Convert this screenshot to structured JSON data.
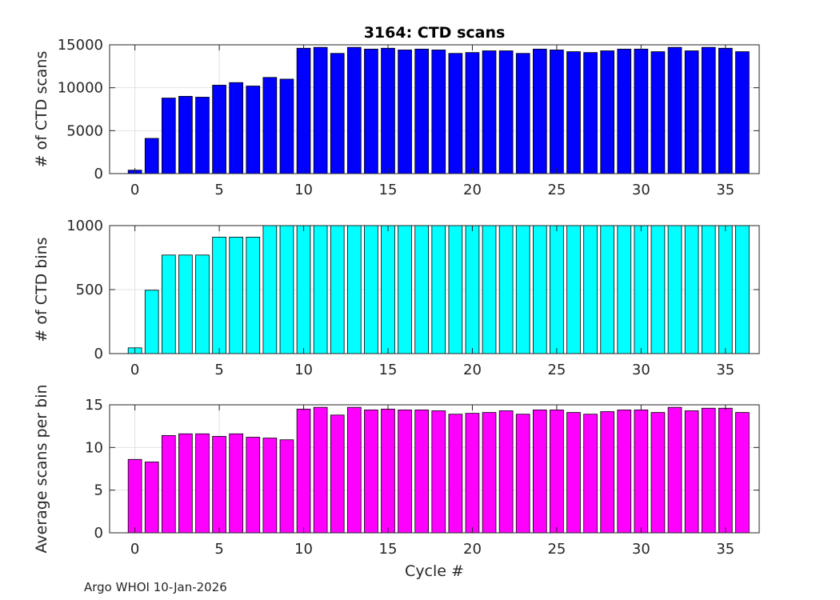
{
  "chart_data": [
    {
      "type": "bar",
      "title": "3164: CTD scans",
      "xlabel": "",
      "ylabel": "# of CTD scans",
      "bar_color": "#0000ff",
      "x": [
        0,
        1,
        2,
        3,
        4,
        5,
        6,
        7,
        8,
        9,
        10,
        11,
        12,
        13,
        14,
        15,
        16,
        17,
        18,
        19,
        20,
        21,
        22,
        23,
        24,
        25,
        26,
        27,
        28,
        29,
        30,
        31,
        32,
        33,
        34,
        35,
        36
      ],
      "values": [
        400,
        4100,
        8800,
        9000,
        8900,
        10300,
        10600,
        10200,
        11200,
        11000,
        14600,
        14700,
        14000,
        14700,
        14500,
        14600,
        14400,
        14500,
        14400,
        14000,
        14100,
        14300,
        14300,
        14000,
        14500,
        14400,
        14200,
        14100,
        14300,
        14500,
        14500,
        14200,
        14700,
        14300,
        14700,
        14600,
        14200
      ],
      "xlim": [
        -1.5,
        37
      ],
      "ylim": [
        0,
        15000
      ],
      "xticks": [
        0,
        5,
        10,
        15,
        20,
        25,
        30,
        35
      ],
      "yticks": [
        0,
        5000,
        10000,
        15000
      ],
      "grid": true
    },
    {
      "type": "bar",
      "title": "",
      "xlabel": "",
      "ylabel": "# of CTD bins",
      "bar_color": "#00ffff",
      "x": [
        0,
        1,
        2,
        3,
        4,
        5,
        6,
        7,
        8,
        9,
        10,
        11,
        12,
        13,
        14,
        15,
        16,
        17,
        18,
        19,
        20,
        21,
        22,
        23,
        24,
        25,
        26,
        27,
        28,
        29,
        30,
        31,
        32,
        33,
        34,
        35,
        36
      ],
      "values": [
        45,
        495,
        770,
        770,
        770,
        910,
        910,
        910,
        1000,
        1000,
        1000,
        1000,
        1000,
        1000,
        1000,
        1000,
        1000,
        1000,
        1000,
        1000,
        1000,
        1000,
        1000,
        1000,
        1000,
        1000,
        1000,
        1000,
        1000,
        1000,
        1000,
        1000,
        1000,
        1000,
        1000,
        1000,
        1000
      ],
      "xlim": [
        -1.5,
        37
      ],
      "ylim": [
        0,
        1000
      ],
      "xticks": [
        0,
        5,
        10,
        15,
        20,
        25,
        30,
        35
      ],
      "yticks": [
        0,
        500,
        1000
      ],
      "grid": true
    },
    {
      "type": "bar",
      "title": "",
      "xlabel": "Cycle #",
      "ylabel": "Average scans per bin",
      "bar_color": "#ff00ff",
      "x": [
        0,
        1,
        2,
        3,
        4,
        5,
        6,
        7,
        8,
        9,
        10,
        11,
        12,
        13,
        14,
        15,
        16,
        17,
        18,
        19,
        20,
        21,
        22,
        23,
        24,
        25,
        26,
        27,
        28,
        29,
        30,
        31,
        32,
        33,
        34,
        35,
        36
      ],
      "values": [
        8.6,
        8.3,
        11.4,
        11.6,
        11.6,
        11.3,
        11.6,
        11.2,
        11.1,
        10.9,
        14.5,
        14.7,
        13.8,
        14.7,
        14.4,
        14.5,
        14.4,
        14.4,
        14.3,
        13.9,
        14.0,
        14.1,
        14.3,
        13.9,
        14.4,
        14.4,
        14.1,
        13.9,
        14.2,
        14.4,
        14.4,
        14.1,
        14.7,
        14.3,
        14.6,
        14.6,
        14.1
      ],
      "xlim": [
        -1.5,
        37
      ],
      "ylim": [
        0,
        15
      ],
      "xticks": [
        0,
        5,
        10,
        15,
        20,
        25,
        30,
        35
      ],
      "yticks": [
        0,
        5,
        10,
        15
      ],
      "grid": true
    }
  ],
  "footer": "Argo WHOI 10-Jan-2026"
}
